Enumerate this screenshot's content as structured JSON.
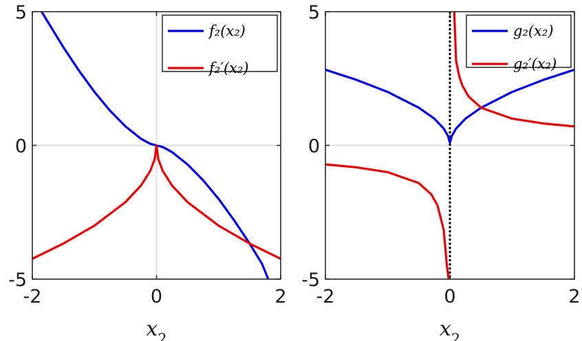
{
  "chart_data": [
    {
      "type": "line",
      "xlabel": "x",
      "xlabel_subscript": "2",
      "xlim": [
        -2,
        2
      ],
      "ylim": [
        -5,
        5
      ],
      "xticks": [
        "-2",
        "0",
        "2"
      ],
      "yticks": [
        "-5",
        "0",
        "5"
      ],
      "grid": true,
      "legend_position": "top-right",
      "series": [
        {
          "name": "f₂(x₂)",
          "color": "#0000ee",
          "x": [
            -1.85,
            -1.5,
            -1.25,
            -1.0,
            -0.75,
            -0.5,
            -0.25,
            -0.1,
            0.0,
            0.1,
            0.25,
            0.5,
            0.75,
            1.0,
            1.25,
            1.5,
            1.7,
            1.8
          ],
          "y": [
            5.0,
            3.67,
            2.8,
            2.0,
            1.3,
            0.71,
            0.25,
            0.06,
            0.0,
            -0.06,
            -0.25,
            -0.71,
            -1.3,
            -2.0,
            -2.8,
            -3.67,
            -4.43,
            -5.0
          ]
        },
        {
          "name": "f₂′(x₂)",
          "color": "#ee0000",
          "x": [
            -2.0,
            -1.5,
            -1.0,
            -0.5,
            -0.25,
            -0.1,
            -0.03,
            0.0,
            0.03,
            0.1,
            0.25,
            0.5,
            1.0,
            1.5,
            2.0
          ],
          "y": [
            -4.24,
            -3.67,
            -3.0,
            -2.12,
            -1.5,
            -0.95,
            -0.52,
            0.0,
            -0.52,
            -0.95,
            -1.5,
            -2.12,
            -3.0,
            -3.67,
            -4.24
          ]
        }
      ]
    },
    {
      "type": "line",
      "xlabel": "x",
      "xlabel_subscript": "2",
      "xlim": [
        -2,
        2
      ],
      "ylim": [
        -5,
        5
      ],
      "xticks": [
        "-2",
        "0",
        "2"
      ],
      "yticks": [
        "-5",
        "0",
        "5"
      ],
      "grid": true,
      "legend_position": "top-right",
      "asymptote_x": 0,
      "series": [
        {
          "name": "g₂(x₂)",
          "color": "#0000ee",
          "x": [
            -2.0,
            -1.5,
            -1.0,
            -0.5,
            -0.25,
            -0.1,
            -0.03,
            0.0,
            0.03,
            0.1,
            0.25,
            0.5,
            1.0,
            1.5,
            2.0
          ],
          "y": [
            2.83,
            2.45,
            2.0,
            1.41,
            1.0,
            0.63,
            0.35,
            0.1,
            0.35,
            0.63,
            1.0,
            1.41,
            2.0,
            2.45,
            2.83
          ]
        },
        {
          "name": "g₂′(x₂)",
          "color": "#ee0000",
          "x": [
            -2.0,
            -1.5,
            -1.0,
            -0.5,
            -0.3,
            -0.2,
            -0.1,
            -0.05,
            -0.02
          ],
          "y": [
            -0.71,
            -0.82,
            -1.0,
            -1.41,
            -1.83,
            -2.24,
            -3.16,
            -4.47,
            -5.0
          ]
        },
        {
          "name": "",
          "color": "#ee0000",
          "x": [
            0.07,
            0.1,
            0.15,
            0.2,
            0.3,
            0.5,
            1.0,
            1.5,
            2.0
          ],
          "y": [
            5.0,
            3.16,
            2.58,
            2.24,
            1.83,
            1.41,
            1.0,
            0.82,
            0.71
          ]
        }
      ]
    }
  ]
}
